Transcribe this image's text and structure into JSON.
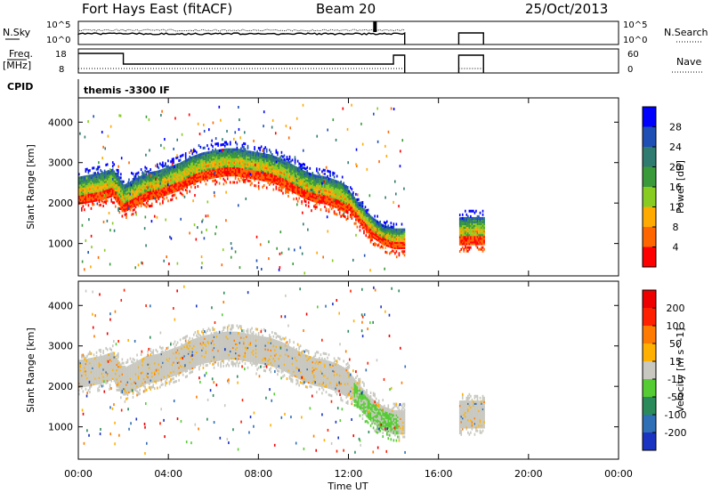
{
  "header": {
    "station": "Fort Hays East (fitACF)",
    "beam": "Beam 20",
    "date": "25/Oct/2013"
  },
  "top_panels": {
    "nsky_label": "N.Sky",
    "nsearch_label": "N.Search",
    "nsky_ticks": [
      "10^5",
      "10^0"
    ],
    "freq_label": "Freq.",
    "freq_unit": "[MHz]",
    "freq_ticks": [
      "18",
      "8"
    ],
    "nave_label": "Nave",
    "nave_ticks": [
      "60",
      "0"
    ],
    "cpid_label": "CPID",
    "cpid_text": "themis -3300 IF"
  },
  "colors": {
    "power": [
      "#0000ff",
      "#1f4fb5",
      "#2f7b6f",
      "#3a9a3a",
      "#88cc22",
      "#ffaa00",
      "#ff6600",
      "#ff0000"
    ],
    "velocity": [
      "#1a33c0",
      "#2f6fb5",
      "#2a8a5a",
      "#55cc33",
      "#c8c8c0",
      "#ffb000",
      "#ff7a00",
      "#ff2000",
      "#ee0000"
    ]
  },
  "chart_data": [
    {
      "type": "heatmap",
      "name": "power",
      "ylabel": "Slant Range [km]",
      "xlabel": "",
      "x_range_hours": [
        0,
        24
      ],
      "ylim": [
        200,
        4600
      ],
      "y_ticks": [
        "4000",
        "3000",
        "2000",
        "1000"
      ],
      "colorbar": {
        "label": "Power [dB]",
        "ticks": [
          "28",
          "24",
          "20",
          "16",
          "12",
          "8",
          "4"
        ]
      },
      "series_outline": {
        "time_h": [
          0,
          0.5,
          1,
          1.5,
          2,
          2.5,
          3,
          3.5,
          4,
          4.5,
          5,
          5.5,
          6,
          6.5,
          7,
          7.5,
          8,
          8.5,
          9,
          9.5,
          10,
          10.5,
          11,
          11.5,
          12,
          12.5,
          13,
          13.5,
          14,
          14.5,
          17,
          17.5,
          18
        ],
        "center_km": [
          2300,
          2350,
          2400,
          2500,
          2100,
          2250,
          2400,
          2450,
          2550,
          2650,
          2800,
          2900,
          2950,
          3000,
          3000,
          2950,
          2900,
          2850,
          2750,
          2600,
          2450,
          2350,
          2300,
          2200,
          2050,
          1700,
          1400,
          1200,
          1100,
          1100,
          1300,
          1300,
          1300
        ]
      }
    },
    {
      "type": "heatmap",
      "name": "velocity",
      "ylabel": "Slant Range [km]",
      "xlabel": "Time UT",
      "x_ticks": [
        "00:00",
        "04:00",
        "08:00",
        "12:00",
        "16:00",
        "20:00",
        "00:00"
      ],
      "ylim": [
        200,
        4600
      ],
      "y_ticks": [
        "4000",
        "3000",
        "2000",
        "1000"
      ],
      "colorbar": {
        "label": "Velocity [m s^-1]",
        "ticks": [
          "200",
          "100",
          "50",
          "15",
          "-15",
          "-50",
          "-100",
          "-200"
        ]
      }
    }
  ]
}
